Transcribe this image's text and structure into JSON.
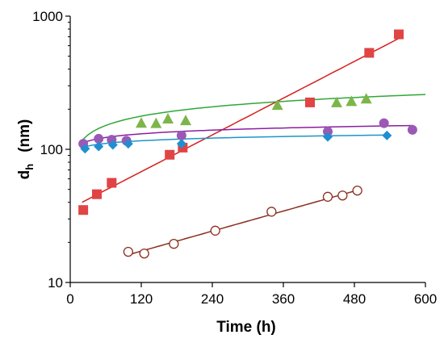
{
  "chart_data": {
    "type": "scatter",
    "xlabel": "Time (h)",
    "ylabel": {
      "main": "d",
      "sub": "h",
      "unit": "(nm)"
    },
    "xlim": [
      0,
      600
    ],
    "ylim": [
      10,
      1000
    ],
    "yscale": "log",
    "grid": false,
    "legend": "none",
    "x_ticks": [
      0,
      120,
      240,
      360,
      480,
      600
    ],
    "y_ticks": [
      10,
      100,
      1000
    ],
    "series": [
      {
        "marker": "square",
        "color": "#e04444",
        "trend": "exponential",
        "trend_color": "#d81f1f",
        "trend_x": [
          20,
          555
        ],
        "trend_y": [
          40,
          680
        ],
        "x": [
          22,
          45,
          70,
          168,
          190,
          405,
          505,
          555
        ],
        "y": [
          35,
          46,
          56,
          91,
          103,
          225,
          530,
          730
        ]
      },
      {
        "marker": "triangle",
        "color": "#7db54a",
        "trend": "power",
        "trend_color": "#2fa838",
        "trend_x": [
          20,
          600
        ],
        "trend_y": [
          117,
          258
        ],
        "x": [
          120,
          145,
          165,
          195,
          350,
          450,
          475,
          500
        ],
        "y": [
          158,
          157,
          170,
          165,
          215,
          225,
          230,
          240
        ]
      },
      {
        "marker": "circle",
        "color": "#9b59b6",
        "trend": "power",
        "trend_color": "#8a1f9e",
        "trend_x": [
          20,
          580
        ],
        "trend_y": [
          111,
          151
        ],
        "x": [
          22,
          48,
          70,
          95,
          188,
          435,
          530,
          578
        ],
        "y": [
          110,
          120,
          118,
          116,
          127,
          136,
          157,
          140
        ]
      },
      {
        "marker": "diamond",
        "color": "#1f8fd0",
        "trend": "power",
        "trend_color": "#1c95c9",
        "trend_x": [
          20,
          535
        ],
        "trend_y": [
          103,
          128
        ],
        "x": [
          25,
          48,
          72,
          98,
          188,
          435,
          535
        ],
        "y": [
          101,
          105,
          108,
          110,
          110,
          124,
          127
        ]
      },
      {
        "marker": "open-circle",
        "color": "#8b2e1e",
        "trend": "exponential",
        "trend_color": "#8b2e1e",
        "trend_x": [
          95,
          490
        ],
        "trend_y": [
          16,
          50
        ],
        "x": [
          98,
          125,
          175,
          245,
          340,
          435,
          460,
          485
        ],
        "y": [
          17,
          16.5,
          19.5,
          24.5,
          34,
          44,
          45,
          49
        ]
      }
    ]
  }
}
